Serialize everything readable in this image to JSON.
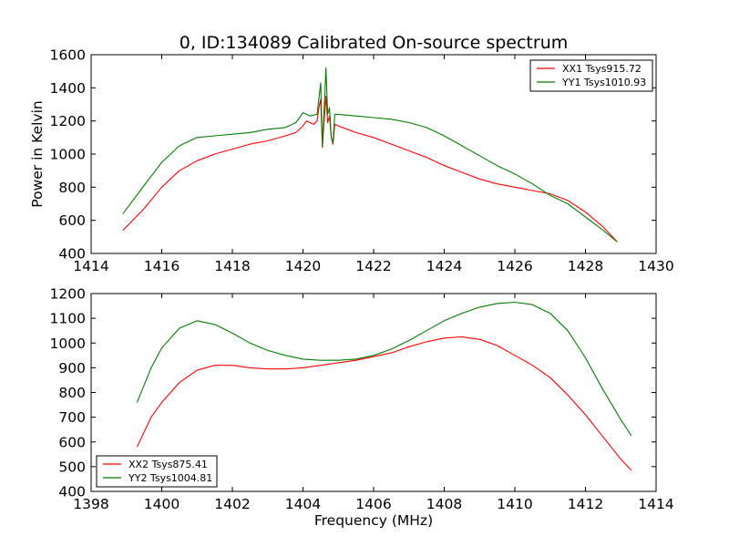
{
  "figure": {
    "title": "0, ID:134089 Calibrated On-source spectrum",
    "shared_xlabel": "Frequency (MHz)"
  },
  "colors": {
    "red": "#ff0000",
    "green": "#007f00"
  },
  "chart_data": [
    {
      "type": "line",
      "title": "0, ID:134089 Calibrated On-source spectrum",
      "xlabel": "",
      "ylabel": "Power in Kelvin",
      "xlim": [
        1414,
        1430
      ],
      "ylim": [
        400,
        1600
      ],
      "xticks": [
        1414,
        1416,
        1418,
        1420,
        1422,
        1424,
        1426,
        1428,
        1430
      ],
      "yticks": [
        400,
        600,
        800,
        1000,
        1200,
        1400,
        1600
      ],
      "grid": false,
      "legend_placement": "top-right",
      "series": [
        {
          "name": "XX1 Tsys915.72",
          "color": "#ff0000",
          "x": [
            1414.9,
            1415.5,
            1416.0,
            1416.5,
            1417.0,
            1417.5,
            1418.0,
            1418.5,
            1419.0,
            1419.5,
            1419.8,
            1420.0,
            1420.1,
            1420.3,
            1420.4,
            1420.45,
            1420.5,
            1420.55,
            1420.6,
            1420.65,
            1420.7,
            1420.75,
            1420.8,
            1420.85,
            1420.9,
            1421.0,
            1421.5,
            1422.0,
            1422.5,
            1423.0,
            1423.5,
            1424.0,
            1424.5,
            1425.0,
            1425.5,
            1426.0,
            1426.5,
            1427.0,
            1427.5,
            1428.0,
            1428.5,
            1428.9
          ],
          "y": [
            540,
            670,
            800,
            900,
            960,
            1000,
            1030,
            1060,
            1080,
            1110,
            1130,
            1170,
            1200,
            1180,
            1200,
            1280,
            1330,
            1040,
            1200,
            1350,
            1190,
            1230,
            1100,
            1060,
            1180,
            1170,
            1130,
            1100,
            1060,
            1020,
            980,
            930,
            890,
            850,
            820,
            800,
            780,
            760,
            720,
            650,
            560,
            470
          ]
        },
        {
          "name": "YY1 Tsys1010.93",
          "color": "#007f00",
          "x": [
            1414.9,
            1415.5,
            1416.0,
            1416.5,
            1417.0,
            1417.5,
            1418.0,
            1418.5,
            1419.0,
            1419.5,
            1419.8,
            1420.0,
            1420.2,
            1420.4,
            1420.45,
            1420.5,
            1420.55,
            1420.6,
            1420.65,
            1420.7,
            1420.75,
            1420.8,
            1420.85,
            1420.9,
            1421.0,
            1421.5,
            1422.0,
            1422.5,
            1423.0,
            1423.5,
            1424.0,
            1424.5,
            1425.0,
            1425.5,
            1426.0,
            1426.5,
            1427.0,
            1427.5,
            1428.0,
            1428.5,
            1428.9
          ],
          "y": [
            640,
            810,
            950,
            1050,
            1100,
            1110,
            1120,
            1130,
            1150,
            1160,
            1190,
            1250,
            1230,
            1240,
            1330,
            1430,
            1050,
            1270,
            1520,
            1240,
            1280,
            1100,
            1070,
            1240,
            1240,
            1230,
            1220,
            1210,
            1190,
            1160,
            1110,
            1050,
            990,
            930,
            880,
            820,
            750,
            700,
            620,
            540,
            470
          ]
        }
      ]
    },
    {
      "type": "line",
      "title": "",
      "xlabel": "Frequency (MHz)",
      "ylabel": "",
      "xlim": [
        1398,
        1414
      ],
      "ylim": [
        400,
        1200
      ],
      "xticks": [
        1398,
        1400,
        1402,
        1404,
        1406,
        1408,
        1410,
        1412,
        1414
      ],
      "yticks": [
        400,
        500,
        600,
        700,
        800,
        900,
        1000,
        1100,
        1200
      ],
      "grid": false,
      "legend_placement": "bottom-left",
      "series": [
        {
          "name": "XX2 Tsys875.41",
          "color": "#ff0000",
          "x": [
            1399.3,
            1399.7,
            1400.0,
            1400.5,
            1401.0,
            1401.5,
            1402.0,
            1402.5,
            1403.0,
            1403.5,
            1404.0,
            1404.5,
            1405.0,
            1405.5,
            1406.0,
            1406.5,
            1407.0,
            1407.5,
            1408.0,
            1408.5,
            1409.0,
            1409.5,
            1410.0,
            1410.5,
            1411.0,
            1411.5,
            1412.0,
            1412.5,
            1413.0,
            1413.3
          ],
          "y": [
            580,
            700,
            760,
            840,
            890,
            910,
            910,
            900,
            895,
            895,
            900,
            910,
            920,
            930,
            945,
            960,
            985,
            1005,
            1020,
            1025,
            1015,
            990,
            950,
            910,
            860,
            790,
            710,
            620,
            530,
            485
          ]
        },
        {
          "name": "YY2 Tsys1004.81",
          "color": "#007f00",
          "x": [
            1399.3,
            1399.7,
            1400.0,
            1400.5,
            1401.0,
            1401.5,
            1402.0,
            1402.5,
            1403.0,
            1403.5,
            1404.0,
            1404.5,
            1405.0,
            1405.5,
            1406.0,
            1406.5,
            1407.0,
            1407.5,
            1408.0,
            1408.5,
            1409.0,
            1409.5,
            1410.0,
            1410.5,
            1411.0,
            1411.5,
            1412.0,
            1412.5,
            1413.0,
            1413.3
          ],
          "y": [
            760,
            900,
            980,
            1060,
            1090,
            1075,
            1040,
            1000,
            970,
            950,
            935,
            930,
            930,
            935,
            950,
            975,
            1010,
            1050,
            1090,
            1120,
            1145,
            1160,
            1165,
            1155,
            1120,
            1050,
            940,
            810,
            690,
            625
          ]
        }
      ]
    }
  ]
}
